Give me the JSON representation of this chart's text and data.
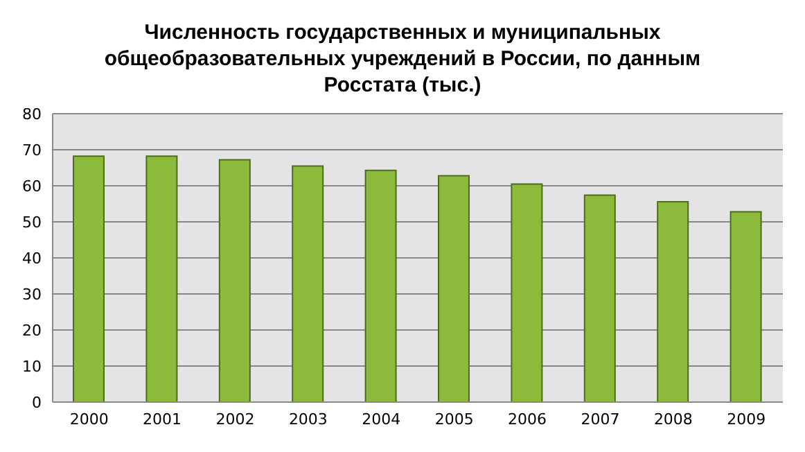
{
  "chart_data": {
    "type": "bar",
    "title": "Численность государственных и муниципальных общеобразовательных учреждений в России, по данным Росстата (тыс.)",
    "categories": [
      "2000",
      "2001",
      "2002",
      "2003",
      "2004",
      "2005",
      "2006",
      "2007",
      "2008",
      "2009"
    ],
    "values": [
      68.2,
      68.2,
      67.2,
      65.5,
      64.3,
      62.8,
      60.5,
      57.4,
      55.6,
      52.8
    ],
    "color": "#8cbb3c",
    "ylim": [
      0,
      80
    ],
    "yticks": [
      0,
      10,
      20,
      30,
      40,
      50,
      60,
      70,
      80
    ],
    "grid": "y"
  }
}
